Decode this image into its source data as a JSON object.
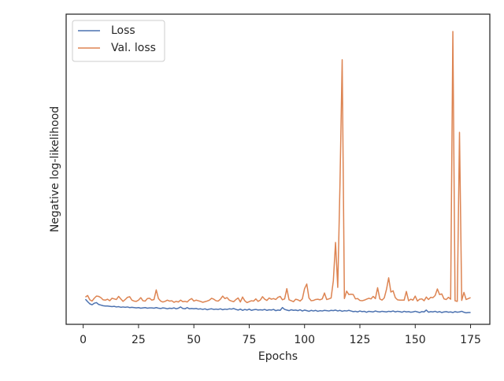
{
  "chart_data": {
    "type": "line",
    "xlabel": "Epochs",
    "ylabel": "Negative log-likelihood",
    "x": [
      1,
      2,
      3,
      4,
      5,
      6,
      7,
      8,
      9,
      10,
      11,
      12,
      13,
      14,
      15,
      16,
      17,
      18,
      19,
      20,
      21,
      22,
      23,
      24,
      25,
      26,
      27,
      28,
      29,
      30,
      31,
      32,
      33,
      34,
      35,
      36,
      37,
      38,
      39,
      40,
      41,
      42,
      43,
      44,
      45,
      46,
      47,
      48,
      49,
      50,
      51,
      52,
      53,
      54,
      55,
      56,
      57,
      58,
      59,
      60,
      61,
      62,
      63,
      64,
      65,
      66,
      67,
      68,
      69,
      70,
      71,
      72,
      73,
      74,
      75,
      76,
      77,
      78,
      79,
      80,
      81,
      82,
      83,
      84,
      85,
      86,
      87,
      88,
      89,
      90,
      91,
      92,
      93,
      94,
      95,
      96,
      97,
      98,
      99,
      100,
      101,
      102,
      103,
      104,
      105,
      106,
      107,
      108,
      109,
      110,
      111,
      112,
      113,
      114,
      115,
      116,
      117,
      118,
      119,
      120,
      121,
      122,
      123,
      124,
      125,
      126,
      127,
      128,
      129,
      130,
      131,
      132,
      133,
      134,
      135,
      136,
      137,
      138,
      139,
      140,
      141,
      142,
      143,
      144,
      145,
      146,
      147,
      148,
      149,
      150,
      151,
      152,
      153,
      154,
      155,
      156,
      157,
      158,
      159,
      160,
      161,
      162,
      163,
      164,
      165,
      166,
      167,
      168,
      169,
      170,
      171,
      172,
      173,
      174,
      175
    ],
    "series": [
      {
        "name": "Loss",
        "color": "#4c72b0",
        "values": [
          8.1,
          7.3,
          6.6,
          6.3,
          6.8,
          7.0,
          6.4,
          6.2,
          6.0,
          5.9,
          5.9,
          5.8,
          5.7,
          5.8,
          5.6,
          5.7,
          5.5,
          5.6,
          5.5,
          5.6,
          5.4,
          5.5,
          5.4,
          5.3,
          5.4,
          5.2,
          5.3,
          5.4,
          5.2,
          5.3,
          5.3,
          5.2,
          5.4,
          5.2,
          5.1,
          5.3,
          5.2,
          5.0,
          5.2,
          5.1,
          5.3,
          5.0,
          5.2,
          5.6,
          5.1,
          5.0,
          5.4,
          5.0,
          5.1,
          5.0,
          5.1,
          4.9,
          5.0,
          4.8,
          5.0,
          4.7,
          4.9,
          5.0,
          4.8,
          4.9,
          4.8,
          5.0,
          4.7,
          4.9,
          4.8,
          5.0,
          4.9,
          5.1,
          4.8,
          4.6,
          4.9,
          4.5,
          4.8,
          4.6,
          4.9,
          4.5,
          4.7,
          4.8,
          4.6,
          4.7,
          4.6,
          4.8,
          4.5,
          4.7,
          4.6,
          4.8,
          4.4,
          4.6,
          4.5,
          5.4,
          4.8,
          4.6,
          4.4,
          4.7,
          4.5,
          4.6,
          4.4,
          4.7,
          4.3,
          4.6,
          4.4,
          4.2,
          4.5,
          4.3,
          4.5,
          4.2,
          4.4,
          4.3,
          4.5,
          4.4,
          4.3,
          4.5,
          4.4,
          4.6,
          4.3,
          4.5,
          4.2,
          4.4,
          4.3,
          4.5,
          4.3,
          4.1,
          4.2,
          4.0,
          4.3,
          4.1,
          4.2,
          3.9,
          4.2,
          4.1,
          4.0,
          4.3,
          4.1,
          4.0,
          4.2,
          4.1,
          4.0,
          4.2,
          4.1,
          4.3,
          4.0,
          4.2,
          4.1,
          3.9,
          4.2,
          4.0,
          4.1,
          3.9,
          4.0,
          4.2,
          4.0,
          3.8,
          4.1,
          4.0,
          4.6,
          3.9,
          4.1,
          4.0,
          4.2,
          3.9,
          4.1,
          3.8,
          4.0,
          4.1,
          3.9,
          4.0,
          3.8,
          4.1,
          3.9,
          4.0,
          4.2,
          3.9,
          3.7,
          3.8,
          3.8
        ]
      },
      {
        "name": "Val. loss",
        "color": "#dd8452",
        "values": [
          8.8,
          9.3,
          7.9,
          7.5,
          8.4,
          9.1,
          9.0,
          8.6,
          7.9,
          7.8,
          8.1,
          7.6,
          8.4,
          8.2,
          8.0,
          9.0,
          8.2,
          7.4,
          8.0,
          8.7,
          8.9,
          7.8,
          7.5,
          7.4,
          7.8,
          8.6,
          7.6,
          7.5,
          8.3,
          8.4,
          7.8,
          8.0,
          11.1,
          8.3,
          7.5,
          7.2,
          7.4,
          7.8,
          7.5,
          7.6,
          7.1,
          7.4,
          7.2,
          7.8,
          7.3,
          7.4,
          7.2,
          7.9,
          8.3,
          7.5,
          7.8,
          7.6,
          7.4,
          7.1,
          7.3,
          7.5,
          7.8,
          8.4,
          8.1,
          7.6,
          7.5,
          8.1,
          9.1,
          8.3,
          8.6,
          7.8,
          7.5,
          7.3,
          8.0,
          8.5,
          7.2,
          8.8,
          7.6,
          7.0,
          7.3,
          7.6,
          7.5,
          8.2,
          7.4,
          7.8,
          8.9,
          8.1,
          7.7,
          8.5,
          8.1,
          8.3,
          8.0,
          8.7,
          9.0,
          7.9,
          8.2,
          11.5,
          7.9,
          7.6,
          7.3,
          8.1,
          7.9,
          7.5,
          8.2,
          11.5,
          13.0,
          8.5,
          7.6,
          7.7,
          8.0,
          8.1,
          7.9,
          8.2,
          10.1,
          8.0,
          8.2,
          8.5,
          14.0,
          26.4,
          11.9,
          45.0,
          85.3,
          8.3,
          10.7,
          9.6,
          9.7,
          9.6,
          8.2,
          8.3,
          7.7,
          7.6,
          7.8,
          8.1,
          8.4,
          8.2,
          9.0,
          8.3,
          11.8,
          8.2,
          7.8,
          8.5,
          11.2,
          15.0,
          10.4,
          10.8,
          8.6,
          7.9,
          7.8,
          7.8,
          7.8,
          10.6,
          7.6,
          8.1,
          7.8,
          9.1,
          7.5,
          8.1,
          8.2,
          7.6,
          8.8,
          8.0,
          8.7,
          8.6,
          9.3,
          11.4,
          9.6,
          9.8,
          8.2,
          8.0,
          8.7,
          8.1,
          94.4,
          7.6,
          7.4,
          61.9,
          7.7,
          10.3,
          8.0,
          8.3,
          8.6
        ]
      }
    ],
    "xlim": [
      -7.7,
      183.7
    ],
    "xticks": [
      0,
      25,
      50,
      75,
      100,
      125,
      150,
      175
    ],
    "ylim": [
      0,
      100
    ],
    "legend": "upper left",
    "grid": false
  }
}
